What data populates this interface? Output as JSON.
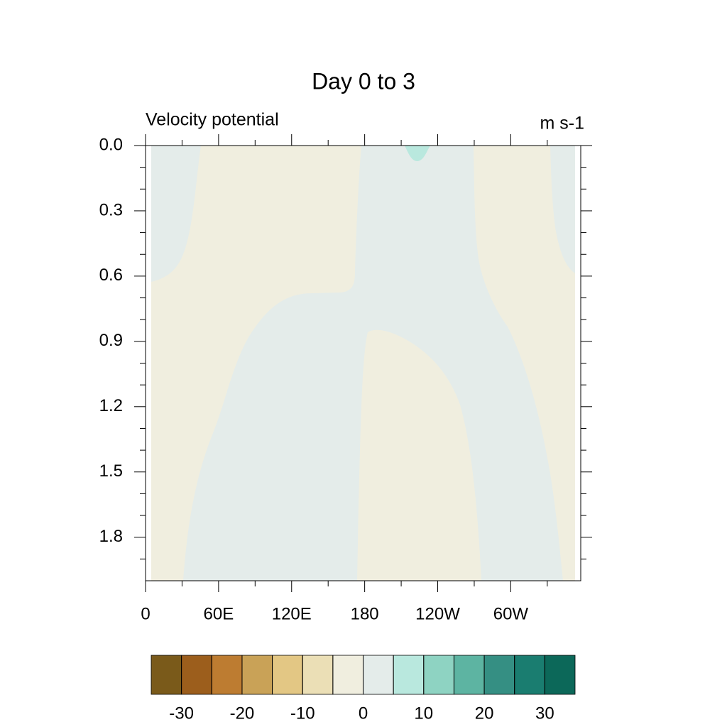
{
  "chart_data": {
    "type": "contour",
    "title": "Day 0 to 3",
    "left_label": "Velocity potential",
    "right_label": "m s-1",
    "xlim": [
      0,
      357.5
    ],
    "xticks": [
      0,
      {
        "value": 60,
        "label": "60E"
      },
      {
        "value": 120,
        "label": "120E"
      },
      180,
      {
        "value": 240,
        "label": "120W"
      },
      {
        "value": 300,
        "label": "60W"
      }
    ],
    "ylim": [
      0,
      2.0
    ],
    "yticks": [
      {
        "value": 0,
        "label": "0.0"
      },
      0.3,
      0.6,
      0.9,
      1.2,
      1.5,
      1.8
    ],
    "colorbar": {
      "levels": [
        -30,
        -25,
        -20,
        -15,
        -10,
        -5,
        0,
        5,
        10,
        15,
        20,
        25,
        30
      ],
      "ticks": [
        -30,
        -20,
        -10,
        0,
        10,
        20,
        30
      ],
      "colors": [
        "#7a5a1a",
        "#9c5e1c",
        "#bd7c31",
        "#c9a257",
        "#e3c784",
        "#ebdfb6",
        "#f0eedf",
        "#e4ecea",
        "#b9e8de",
        "#8ed3c2",
        "#5db4a2",
        "#358f83",
        "#1a7d70",
        "#0c6859"
      ]
    }
  }
}
